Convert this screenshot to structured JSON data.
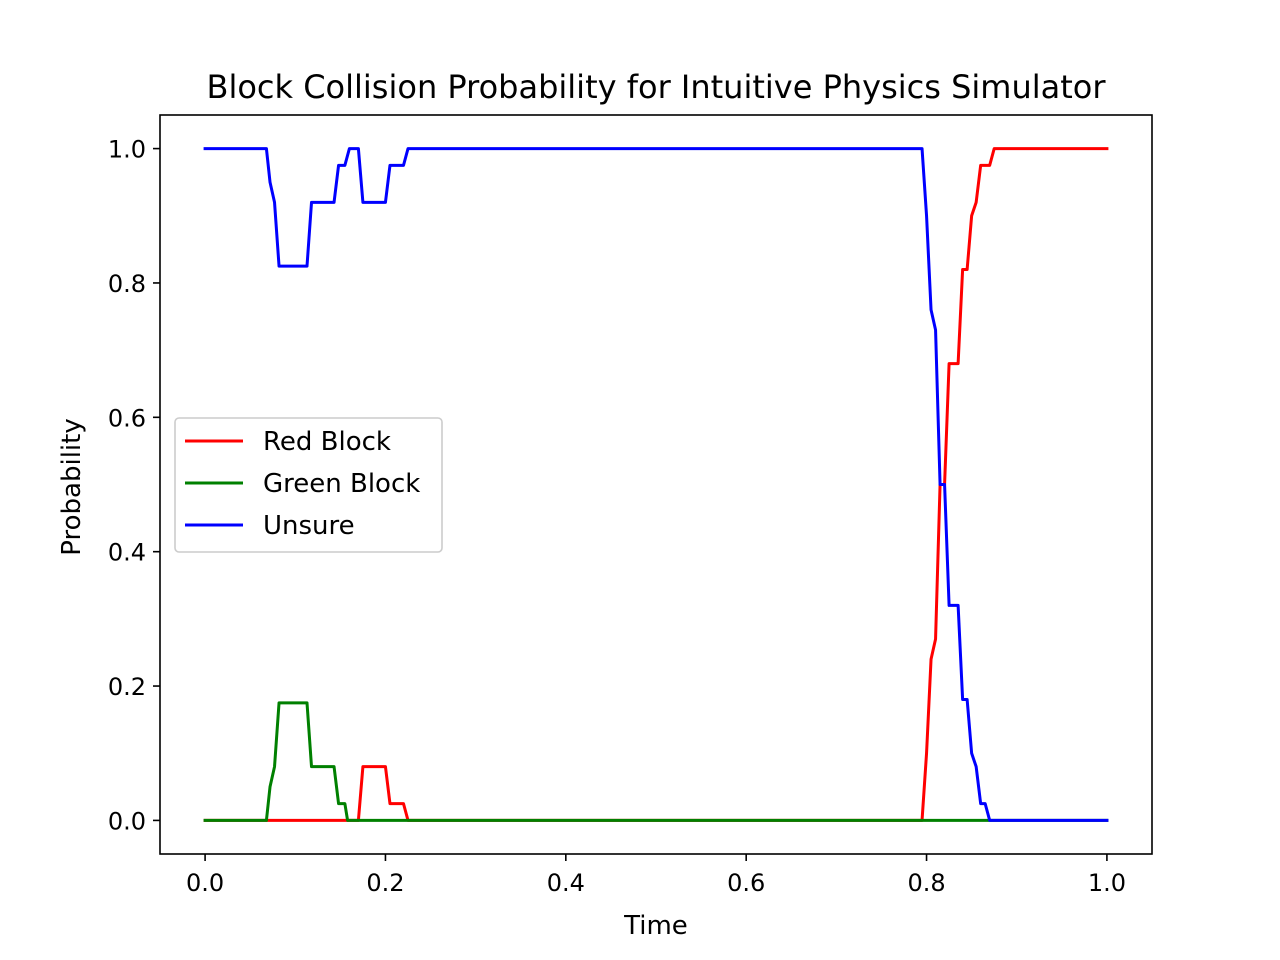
{
  "chart_data": {
    "type": "line",
    "title": "Block Collision Probability for Intuitive Physics Simulator",
    "xlabel": "Time",
    "ylabel": "Probability",
    "xlim": [
      -0.05,
      1.05
    ],
    "ylim": [
      -0.05,
      1.05
    ],
    "xticks": [
      0.0,
      0.2,
      0.4,
      0.6,
      0.8,
      1.0
    ],
    "xtick_labels": [
      "0.0",
      "0.2",
      "0.4",
      "0.6",
      "0.8",
      "1.0"
    ],
    "yticks": [
      0.0,
      0.2,
      0.4,
      0.6,
      0.8,
      1.0
    ],
    "ytick_labels": [
      "0.0",
      "0.2",
      "0.4",
      "0.6",
      "0.8",
      "1.0"
    ],
    "grid": false,
    "legend_position": "center-left",
    "series": [
      {
        "name": "Red Block",
        "color": "#ff0000",
        "points": [
          [
            0.0,
            0.0
          ],
          [
            0.17,
            0.0
          ],
          [
            0.175,
            0.08
          ],
          [
            0.2,
            0.08
          ],
          [
            0.205,
            0.025
          ],
          [
            0.22,
            0.025
          ],
          [
            0.225,
            0.0
          ],
          [
            0.795,
            0.0
          ],
          [
            0.8,
            0.1
          ],
          [
            0.805,
            0.24
          ],
          [
            0.81,
            0.27
          ],
          [
            0.815,
            0.5
          ],
          [
            0.82,
            0.5
          ],
          [
            0.825,
            0.68
          ],
          [
            0.835,
            0.68
          ],
          [
            0.84,
            0.82
          ],
          [
            0.845,
            0.82
          ],
          [
            0.85,
            0.9
          ],
          [
            0.855,
            0.92
          ],
          [
            0.86,
            0.975
          ],
          [
            0.87,
            0.975
          ],
          [
            0.875,
            1.0
          ],
          [
            1.0,
            1.0
          ]
        ]
      },
      {
        "name": "Green Block",
        "color": "#008000",
        "points": [
          [
            0.0,
            0.0
          ],
          [
            0.068,
            0.0
          ],
          [
            0.072,
            0.05
          ],
          [
            0.077,
            0.08
          ],
          [
            0.082,
            0.175
          ],
          [
            0.113,
            0.175
          ],
          [
            0.118,
            0.08
          ],
          [
            0.143,
            0.08
          ],
          [
            0.148,
            0.025
          ],
          [
            0.155,
            0.025
          ],
          [
            0.158,
            0.0
          ],
          [
            1.0,
            0.0
          ]
        ]
      },
      {
        "name": "Unsure",
        "color": "#0000ff",
        "points": [
          [
            0.0,
            1.0
          ],
          [
            0.068,
            1.0
          ],
          [
            0.072,
            0.95
          ],
          [
            0.077,
            0.92
          ],
          [
            0.082,
            0.825
          ],
          [
            0.113,
            0.825
          ],
          [
            0.118,
            0.92
          ],
          [
            0.143,
            0.92
          ],
          [
            0.148,
            0.975
          ],
          [
            0.155,
            0.975
          ],
          [
            0.16,
            1.0
          ],
          [
            0.17,
            1.0
          ],
          [
            0.175,
            0.92
          ],
          [
            0.2,
            0.92
          ],
          [
            0.205,
            0.975
          ],
          [
            0.22,
            0.975
          ],
          [
            0.225,
            1.0
          ],
          [
            0.795,
            1.0
          ],
          [
            0.8,
            0.9
          ],
          [
            0.805,
            0.76
          ],
          [
            0.81,
            0.73
          ],
          [
            0.815,
            0.5
          ],
          [
            0.82,
            0.5
          ],
          [
            0.825,
            0.32
          ],
          [
            0.835,
            0.32
          ],
          [
            0.84,
            0.18
          ],
          [
            0.845,
            0.18
          ],
          [
            0.85,
            0.1
          ],
          [
            0.855,
            0.08
          ],
          [
            0.86,
            0.025
          ],
          [
            0.865,
            0.025
          ],
          [
            0.87,
            0.0
          ],
          [
            1.0,
            0.0
          ]
        ]
      }
    ]
  }
}
